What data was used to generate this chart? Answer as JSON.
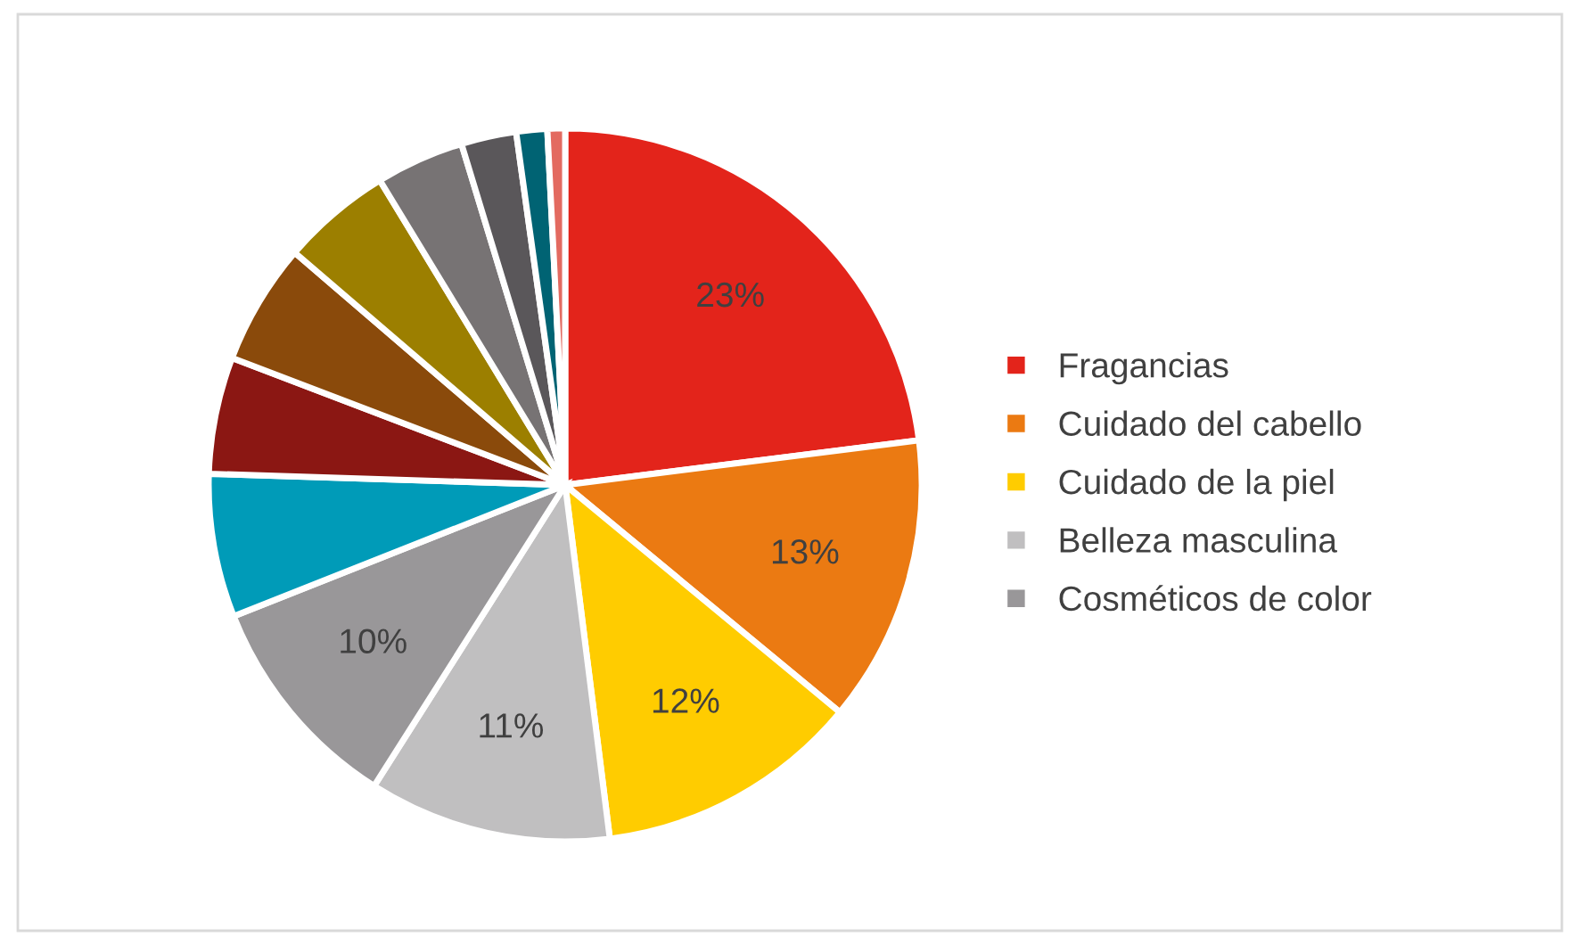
{
  "chart_data": {
    "type": "pie",
    "categories": [
      "Fragancias",
      "Cuidado del cabello",
      "Cuidado de la piel",
      "Belleza masculina",
      "Cosméticos de color",
      null,
      null,
      null,
      null,
      null,
      null,
      null,
      null
    ],
    "values": [
      23,
      13,
      12,
      11,
      10,
      6.5,
      5.3,
      5.5,
      5,
      4,
      2.5,
      1.4,
      0.8
    ],
    "colors": [
      "#e3241b",
      "#eb7a12",
      "#ffcc00",
      "#c0bfc0",
      "#999799",
      "#009bb8",
      "#8b1713",
      "#8a4a0b",
      "#9c7f00",
      "#777374",
      "#5a575a",
      "#006373",
      "#e36a60"
    ],
    "value_labels": [
      "23%",
      "13%",
      "12%",
      "11%",
      "10%",
      null,
      null,
      null,
      null,
      null,
      null,
      null,
      null
    ],
    "legend": "right"
  }
}
